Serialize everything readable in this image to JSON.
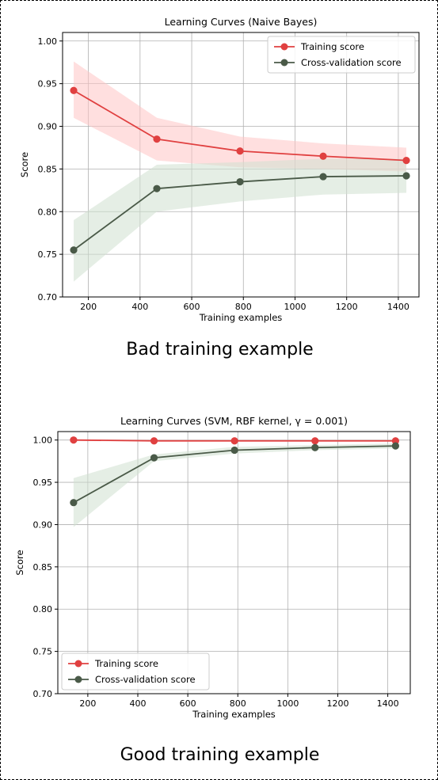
{
  "captions": {
    "top": "Bad training example",
    "bottom": "Good training example"
  },
  "chart_data": [
    {
      "type": "line",
      "title": "Learning Curves (Naive Bayes)",
      "xlabel": "Training examples",
      "ylabel": "Score",
      "xlim": [
        100,
        1480
      ],
      "ylim": [
        0.7,
        1.01
      ],
      "xticks": [
        200,
        400,
        600,
        800,
        1000,
        1200,
        1400
      ],
      "yticks": [
        0.7,
        0.75,
        0.8,
        0.85,
        0.9,
        0.95,
        1.0
      ],
      "grid": true,
      "legend_position": "upper right",
      "x": [
        143,
        465,
        787,
        1109,
        1431
      ],
      "series": [
        {
          "name": "Training score",
          "color": "#e04040",
          "band_color": "#ffc4c4",
          "values": [
            0.942,
            0.885,
            0.871,
            0.865,
            0.86
          ],
          "band_lower": [
            0.91,
            0.86,
            0.852,
            0.85,
            0.847
          ],
          "band_upper": [
            0.976,
            0.91,
            0.888,
            0.88,
            0.875
          ]
        },
        {
          "name": "Cross-validation score",
          "color": "#4a5a48",
          "band_color": "#cfe0cf",
          "values": [
            0.755,
            0.827,
            0.835,
            0.841,
            0.842
          ],
          "band_lower": [
            0.718,
            0.8,
            0.812,
            0.82,
            0.822
          ],
          "band_upper": [
            0.79,
            0.855,
            0.858,
            0.862,
            0.862
          ]
        }
      ]
    },
    {
      "type": "line",
      "title": "Learning Curves (SVM, RBF kernel, γ = 0.001)",
      "xlabel": "Training examples",
      "ylabel": "Score",
      "xlim": [
        80,
        1490
      ],
      "ylim": [
        0.7,
        1.01
      ],
      "xticks": [
        200,
        400,
        600,
        800,
        1000,
        1200,
        1400
      ],
      "yticks": [
        0.7,
        0.75,
        0.8,
        0.85,
        0.9,
        0.95,
        1.0
      ],
      "grid": true,
      "legend_position": "lower left",
      "x": [
        143,
        465,
        787,
        1109,
        1431
      ],
      "series": [
        {
          "name": "Training score",
          "color": "#e04040",
          "band_color": "#ffc4c4",
          "values": [
            1.0,
            0.999,
            0.999,
            0.999,
            0.999
          ],
          "band_lower": [
            0.999,
            0.998,
            0.998,
            0.998,
            0.998
          ],
          "band_upper": [
            1.0,
            1.0,
            1.0,
            1.0,
            1.0
          ]
        },
        {
          "name": "Cross-validation score",
          "color": "#4a5a48",
          "band_color": "#cfe0cf",
          "values": [
            0.926,
            0.979,
            0.988,
            0.991,
            0.993
          ],
          "band_lower": [
            0.897,
            0.975,
            0.984,
            0.988,
            0.99
          ],
          "band_upper": [
            0.955,
            0.983,
            0.992,
            0.994,
            0.996
          ]
        }
      ]
    }
  ]
}
